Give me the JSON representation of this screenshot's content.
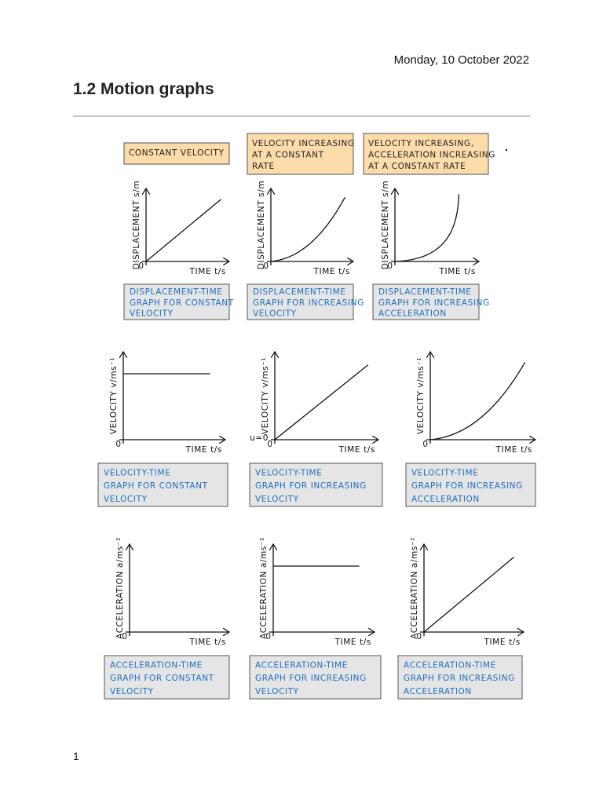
{
  "header": {
    "date": "Monday, 10 October 2022",
    "title": "1.2 Motion graphs"
  },
  "columns": [
    {
      "lines": [
        "CONSTANT VELOCITY"
      ]
    },
    {
      "lines": [
        "VELOCITY INCREASING",
        "AT A CONSTANT",
        "RATE"
      ]
    },
    {
      "lines": [
        "VELOCITY INCREASING,",
        "ACCELERATION INCREASING",
        "AT A CONSTANT RATE"
      ]
    }
  ],
  "rows": [
    {
      "y_label": "DISPLACEMENT s/m",
      "x_label": "TIME t/s",
      "origin": "0",
      "graphs": [
        {
          "caption": [
            "DISPLACEMENT-TIME",
            "GRAPH FOR CONSTANT",
            "VELOCITY"
          ]
        },
        {
          "caption": [
            "DISPLACEMENT-TIME",
            "GRAPH FOR INCREASING",
            "VELOCITY"
          ]
        },
        {
          "caption": [
            "DISPLACEMENT-TIME",
            "GRAPH FOR INCREASING",
            "ACCELERATION"
          ]
        }
      ]
    },
    {
      "y_label": "VELOCITY v/ms⁻¹",
      "x_label": "TIME t/s",
      "origin": "0",
      "graphs": [
        {
          "caption": [
            "VELOCITY-TIME",
            "GRAPH FOR CONSTANT",
            "VELOCITY"
          ]
        },
        {
          "caption": [
            "VELOCITY-TIME",
            "GRAPH FOR INCREASING",
            "VELOCITY"
          ],
          "start_label": "u=0"
        },
        {
          "caption": [
            "VELOCITY-TIME",
            "GRAPH FOR INCREASING",
            "ACCELERATION"
          ]
        }
      ]
    },
    {
      "y_label": "ACCELERATION a/ms⁻²",
      "x_label": "TIME t/s",
      "origin": "0",
      "graphs": [
        {
          "caption": [
            "ACCELERATION-TIME",
            "GRAPH FOR CONSTANT",
            "VELOCITY"
          ]
        },
        {
          "caption": [
            "ACCELERATION-TIME",
            "GRAPH FOR INCREASING",
            "VELOCITY"
          ]
        },
        {
          "caption": [
            "ACCELERATION-TIME",
            "GRAPH FOR INCREASING",
            "ACCELERATION"
          ]
        }
      ]
    }
  ],
  "page_number": "1"
}
